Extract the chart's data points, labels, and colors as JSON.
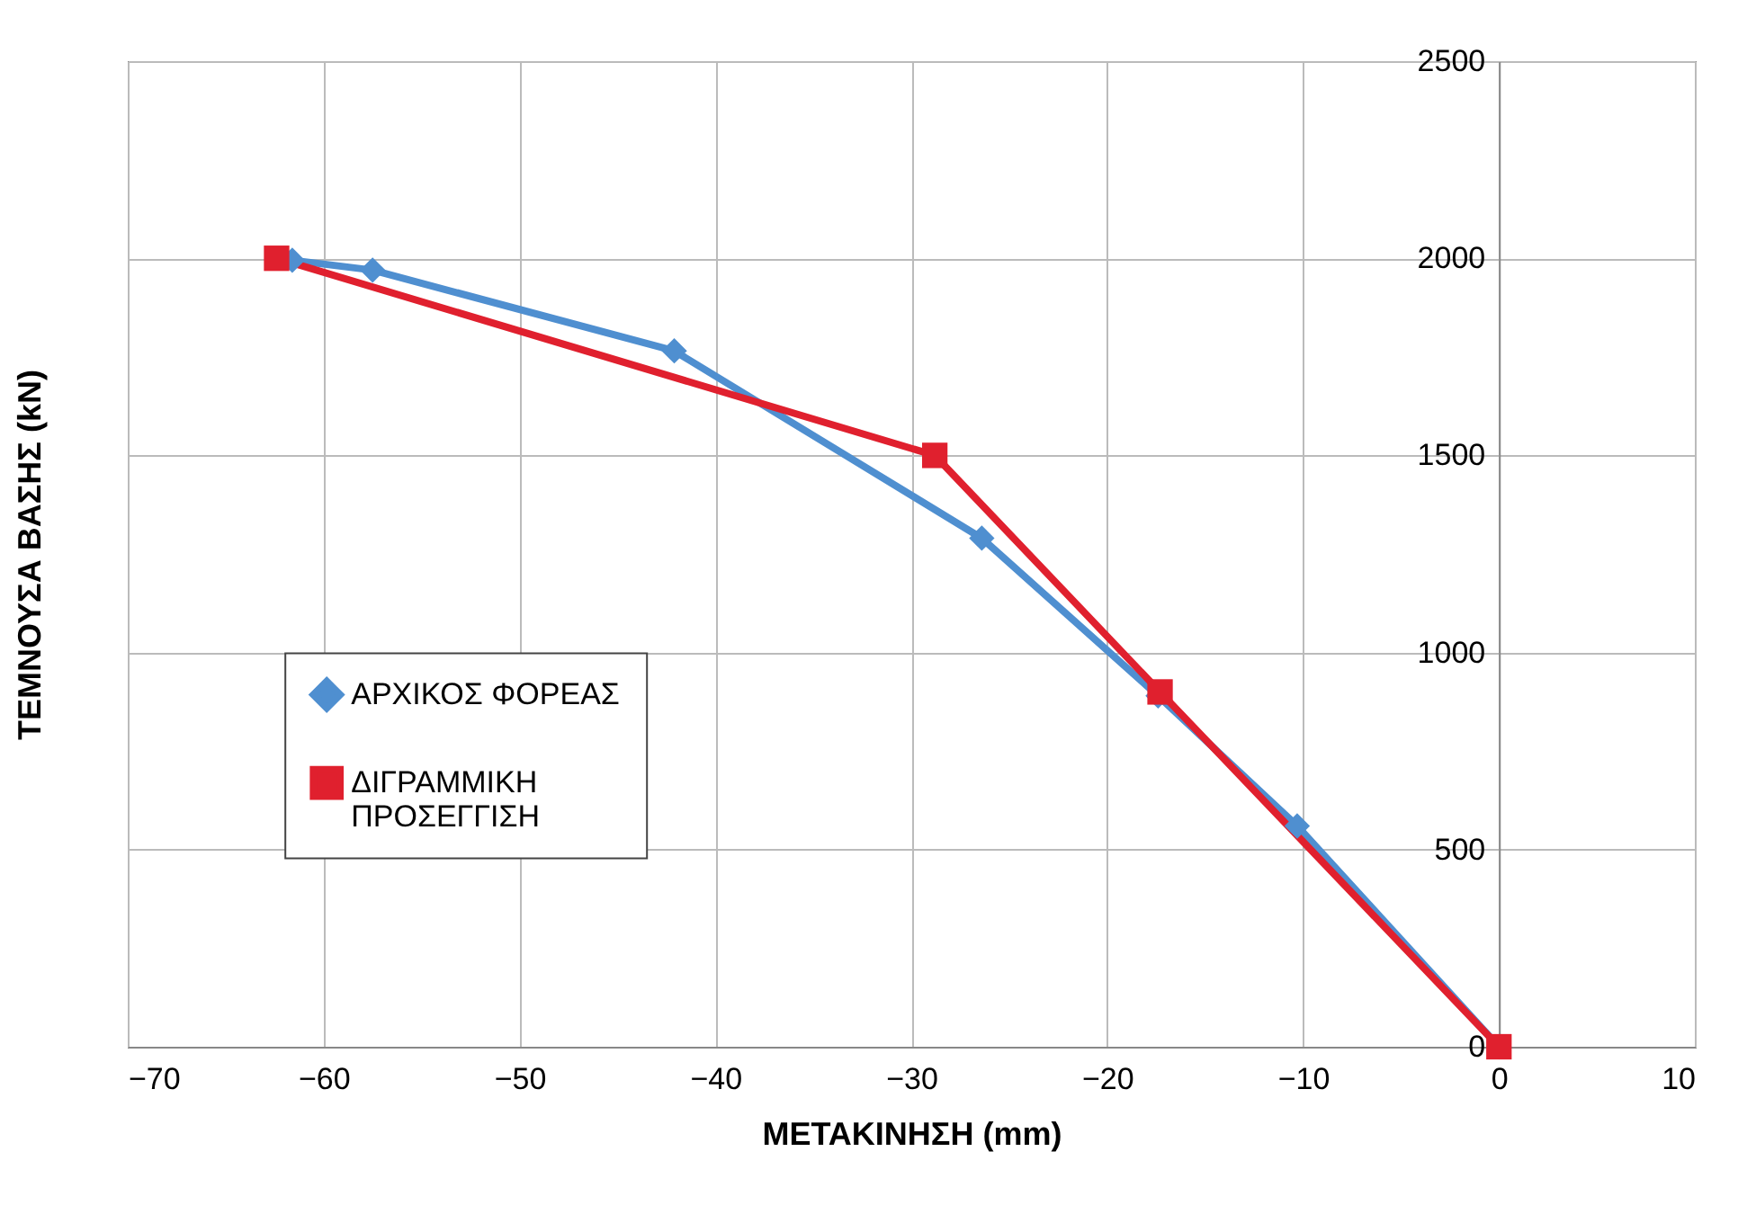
{
  "chart_data": {
    "type": "line",
    "xlabel": "ΜΕΤΑΚΙΝΗΣΗ (mm)",
    "ylabel": "ΤΕΜΝΟΥΣΑ ΒΑΣΗΣ (kN)",
    "xlim": [
      -70,
      10
    ],
    "xticks": [
      -70,
      -60,
      -50,
      -40,
      -30,
      -20,
      -10,
      0,
      10
    ],
    "ylim": [
      0,
      2500
    ],
    "yticks": [
      0,
      500,
      1000,
      1500,
      2000,
      2500
    ],
    "grid": true,
    "legend": "left",
    "line_style": "solid",
    "series": [
      {
        "name": "ΑΡΧΙΚΟΣ ΦΟΡΕΑΣ",
        "color": "#4f8fd0",
        "marker": "diamond",
        "x": [
          0,
          -10.3,
          -17.4,
          -26.4,
          -42.1,
          -57.5,
          -61.6
        ],
        "values": [
          0,
          560,
          890,
          1290,
          1765,
          1970,
          1995
        ]
      },
      {
        "name": "ΔΙΓΡΑΜΜΙΚΗ ΠΡΟΣΕΓΓΙΣΗ",
        "color": "#e0202e",
        "marker": "square",
        "x": [
          0,
          -17.3,
          -28.8,
          -62.4
        ],
        "values": [
          0,
          900,
          1500,
          2000
        ]
      }
    ]
  }
}
